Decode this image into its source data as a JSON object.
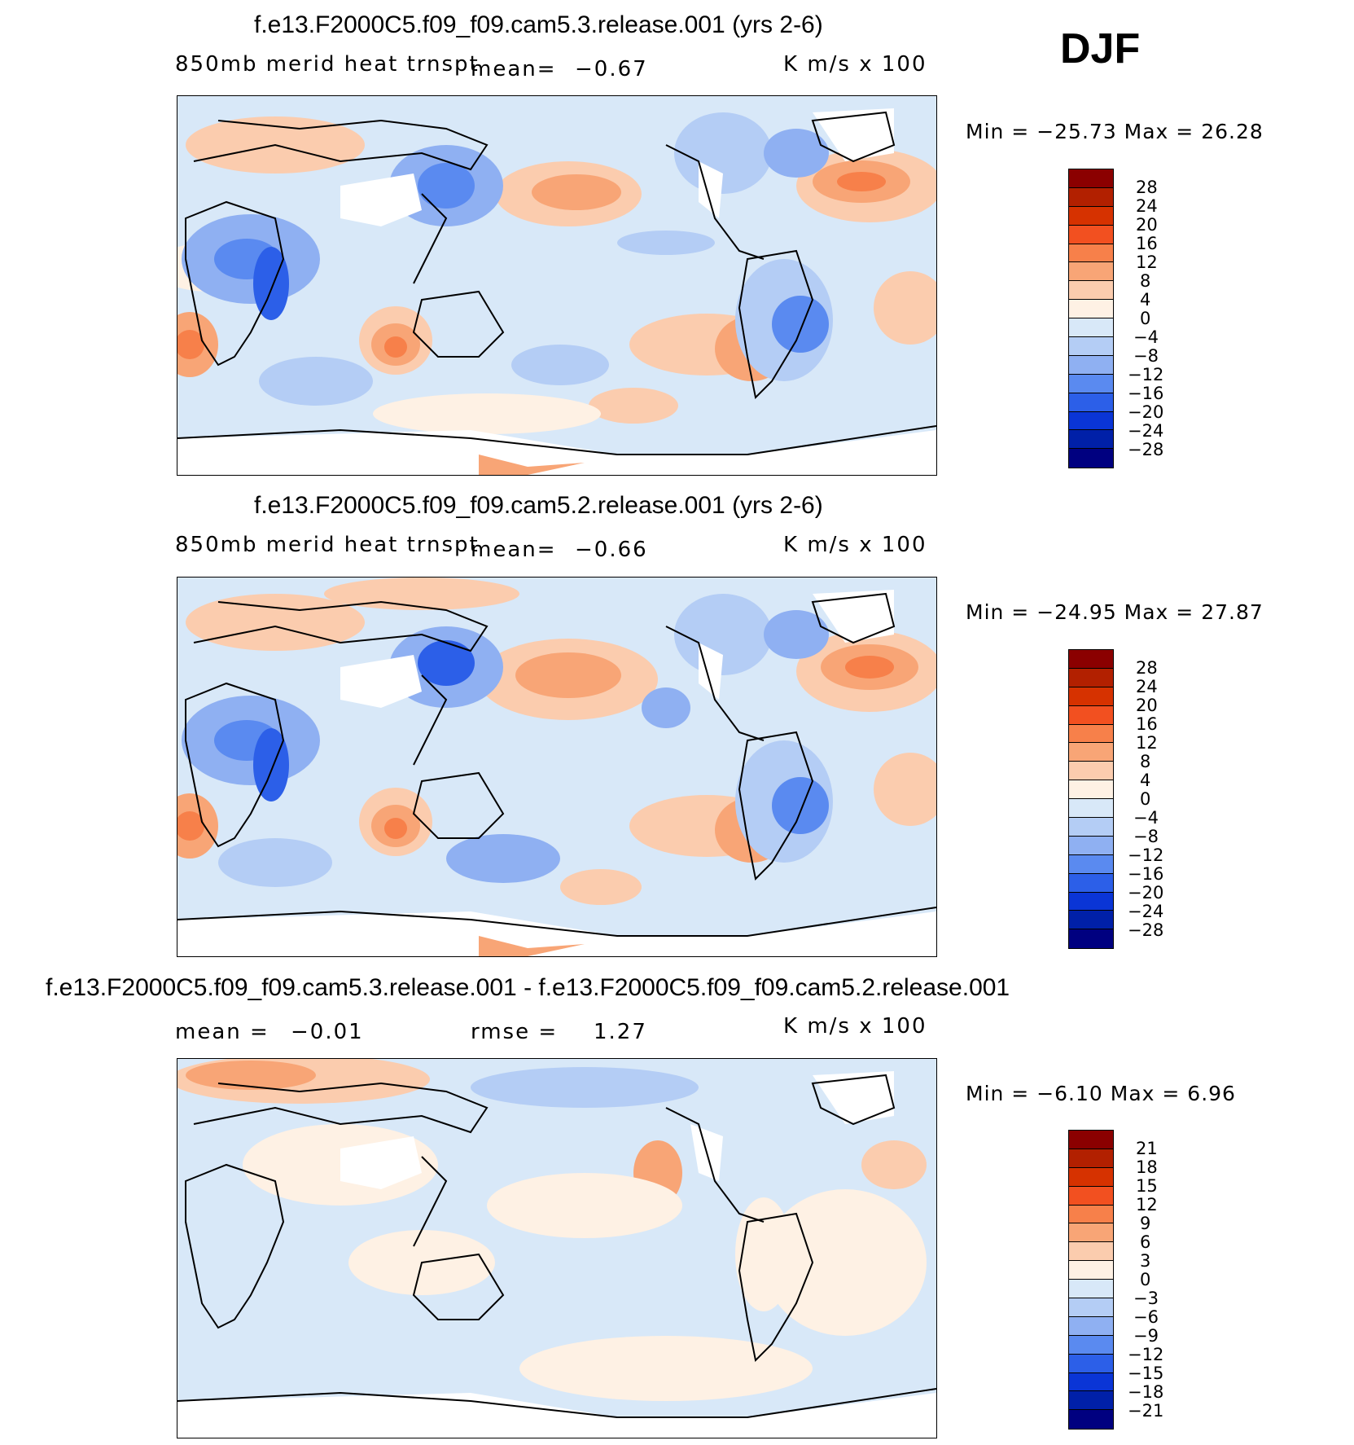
{
  "season": "DJF",
  "panels": [
    {
      "title": "f.e13.F2000C5.f09_f09.cam5.3.release.001 (yrs 2-6)",
      "variable": "850mb merid heat trnspt",
      "mean_label": "mean=",
      "mean_value": "−0.67",
      "units": "K  m/s  x  100",
      "minmax": "Min  =  −25.73  Max  =    26.28",
      "colorbar_levels": [
        "28",
        "24",
        "20",
        "16",
        "12",
        "8",
        "4",
        "0",
        "−4",
        "−8",
        "−12",
        "−16",
        "−20",
        "−24",
        "−28"
      ]
    },
    {
      "title": "f.e13.F2000C5.f09_f09.cam5.2.release.001 (yrs 2-6)",
      "variable": "850mb merid heat trnspt",
      "mean_label": "mean=",
      "mean_value": "−0.66",
      "units": "K  m/s  x  100",
      "minmax": "Min  =  −24.95  Max  =    27.87",
      "colorbar_levels": [
        "28",
        "24",
        "20",
        "16",
        "12",
        "8",
        "4",
        "0",
        "−4",
        "−8",
        "−12",
        "−16",
        "−20",
        "−24",
        "−28"
      ]
    },
    {
      "title": "f.e13.F2000C5.f09_f09.cam5.3.release.001 - f.e13.F2000C5.f09_f09.cam5.2.release.001",
      "mean_label": "mean  =",
      "mean_value": "−0.01",
      "rmse_label": "rmse  =",
      "rmse_value": "1.27",
      "units": "K  m/s  x  100",
      "minmax": "Min  =    −6.10  Max  =      6.96",
      "colorbar_levels": [
        "21",
        "18",
        "15",
        "12",
        "9",
        "6",
        "3",
        "0",
        "−3",
        "−6",
        "−9",
        "−12",
        "−15",
        "−18",
        "−21"
      ]
    }
  ],
  "colors": [
    "#8b0000",
    "#b22000",
    "#d63200",
    "#f25020",
    "#f7804a",
    "#f8a576",
    "#fbccae",
    "#fef1e4",
    "#d8e8f8",
    "#b4cdf5",
    "#8fb0f2",
    "#5a8af0",
    "#2c5fe8",
    "#0a35d6",
    "#0020a8",
    "#000080"
  ]
}
